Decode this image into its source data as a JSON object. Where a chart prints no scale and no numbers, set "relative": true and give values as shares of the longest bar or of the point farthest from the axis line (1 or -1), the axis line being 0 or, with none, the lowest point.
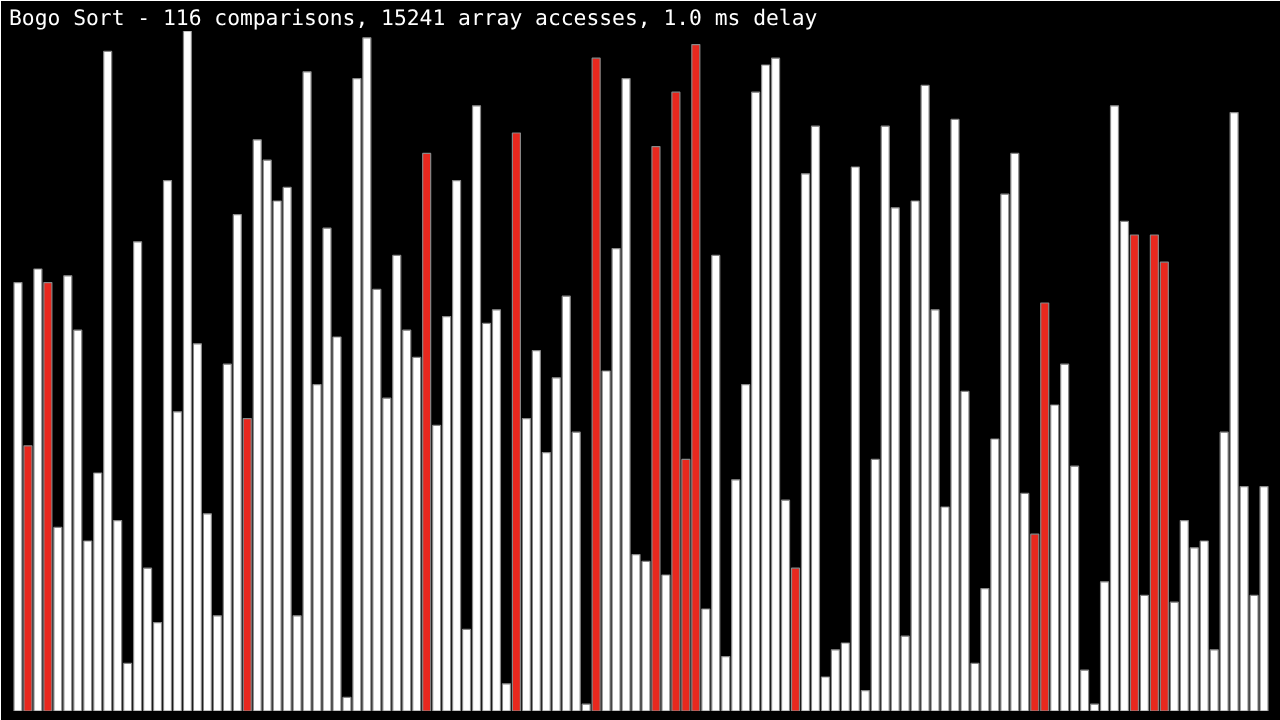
{
  "chart_data": {
    "type": "bar",
    "relative": true,
    "title": "Bogo Sort - 116 comparisons, 15241 array accesses, 1.0 ms delay",
    "categories": [
      null,
      null,
      null,
      null,
      null,
      null,
      null,
      null,
      null,
      null,
      null,
      null,
      null,
      null,
      null,
      null,
      null,
      null,
      null,
      null,
      null,
      null,
      null,
      null,
      null,
      null,
      null,
      null,
      null,
      null,
      null,
      null,
      null,
      null,
      null,
      null,
      null,
      null,
      null,
      null,
      null,
      null,
      null,
      null,
      null,
      null,
      null,
      null,
      null,
      null,
      null,
      null,
      null,
      null,
      null,
      null,
      null,
      null,
      null,
      null,
      null,
      null,
      null,
      null,
      null,
      null,
      null,
      null,
      null,
      null,
      null,
      null,
      null,
      null,
      null,
      null,
      null,
      null,
      null,
      null,
      null,
      null,
      null,
      null,
      null,
      null,
      null,
      null,
      null,
      null,
      null,
      null,
      null,
      null,
      null,
      null,
      null,
      null,
      null,
      null,
      null,
      null,
      null,
      null,
      null,
      null,
      null,
      null,
      null,
      null,
      null,
      null,
      null,
      null,
      null,
      null,
      null,
      null,
      null,
      null,
      null,
      null,
      null,
      null,
      null,
      null
    ],
    "values": [
      0.63,
      0.39,
      0.65,
      0.63,
      0.27,
      0.64,
      0.56,
      0.25,
      0.35,
      0.97,
      0.28,
      0.07,
      0.69,
      0.21,
      0.13,
      0.78,
      0.44,
      1.0,
      0.54,
      0.29,
      0.14,
      0.51,
      0.73,
      0.43,
      0.84,
      0.81,
      0.75,
      0.77,
      0.14,
      0.94,
      0.48,
      0.71,
      0.55,
      0.02,
      0.93,
      0.99,
      0.62,
      0.46,
      0.67,
      0.56,
      0.52,
      0.82,
      0.42,
      0.58,
      0.78,
      0.12,
      0.89,
      0.57,
      0.59,
      0.04,
      0.85,
      0.43,
      0.53,
      0.38,
      0.49,
      0.61,
      0.41,
      0.01,
      0.96,
      0.5,
      0.68,
      0.93,
      0.23,
      0.22,
      0.83,
      0.2,
      0.91,
      0.37,
      0.98,
      0.15,
      0.67,
      0.08,
      0.34,
      0.48,
      0.91,
      0.95,
      0.96,
      0.31,
      0.21,
      0.79,
      0.86,
      0.05,
      0.09,
      0.1,
      0.8,
      0.03,
      0.37,
      0.86,
      0.74,
      0.11,
      0.75,
      0.92,
      0.59,
      0.3,
      0.87,
      0.47,
      0.07,
      0.18,
      0.4,
      0.76,
      0.82,
      0.32,
      0.26,
      0.6,
      0.45,
      0.51,
      0.36,
      0.06,
      0.01,
      0.19,
      0.89,
      0.72,
      0.7,
      0.17,
      0.7,
      0.66,
      0.16,
      0.28,
      0.24,
      0.25,
      0.09,
      0.41,
      0.88,
      0.33,
      0.17,
      0.33
    ],
    "colors": [
      "#ffffff",
      "#e8281e",
      "#ffffff",
      "#e8281e",
      "#ffffff",
      "#ffffff",
      "#ffffff",
      "#ffffff",
      "#ffffff",
      "#ffffff",
      "#ffffff",
      "#ffffff",
      "#ffffff",
      "#ffffff",
      "#ffffff",
      "#ffffff",
      "#ffffff",
      "#ffffff",
      "#ffffff",
      "#ffffff",
      "#ffffff",
      "#ffffff",
      "#ffffff",
      "#e8281e",
      "#ffffff",
      "#ffffff",
      "#ffffff",
      "#ffffff",
      "#ffffff",
      "#ffffff",
      "#ffffff",
      "#ffffff",
      "#ffffff",
      "#ffffff",
      "#ffffff",
      "#ffffff",
      "#ffffff",
      "#ffffff",
      "#ffffff",
      "#ffffff",
      "#ffffff",
      "#e8281e",
      "#ffffff",
      "#ffffff",
      "#ffffff",
      "#ffffff",
      "#ffffff",
      "#ffffff",
      "#ffffff",
      "#ffffff",
      "#e8281e",
      "#ffffff",
      "#ffffff",
      "#ffffff",
      "#ffffff",
      "#ffffff",
      "#ffffff",
      "#ffffff",
      "#e8281e",
      "#ffffff",
      "#ffffff",
      "#ffffff",
      "#ffffff",
      "#ffffff",
      "#e8281e",
      "#ffffff",
      "#e8281e",
      "#e8281e",
      "#e8281e",
      "#ffffff",
      "#ffffff",
      "#ffffff",
      "#ffffff",
      "#ffffff",
      "#ffffff",
      "#ffffff",
      "#ffffff",
      "#ffffff",
      "#e8281e",
      "#ffffff",
      "#ffffff",
      "#ffffff",
      "#ffffff",
      "#ffffff",
      "#ffffff",
      "#ffffff",
      "#ffffff",
      "#ffffff",
      "#ffffff",
      "#ffffff",
      "#ffffff",
      "#ffffff",
      "#ffffff",
      "#ffffff",
      "#ffffff",
      "#ffffff",
      "#ffffff",
      "#ffffff",
      "#ffffff",
      "#ffffff",
      "#ffffff",
      "#ffffff",
      "#e8281e",
      "#e8281e",
      "#ffffff",
      "#ffffff",
      "#ffffff",
      "#ffffff",
      "#ffffff",
      "#ffffff",
      "#ffffff",
      "#ffffff",
      "#e8281e",
      "#ffffff",
      "#e8281e",
      "#e8281e",
      "#ffffff",
      "#ffffff",
      "#ffffff",
      "#ffffff",
      "#ffffff",
      "#ffffff",
      "#ffffff",
      "#ffffff",
      "#ffffff",
      "#ffffff"
    ]
  }
}
